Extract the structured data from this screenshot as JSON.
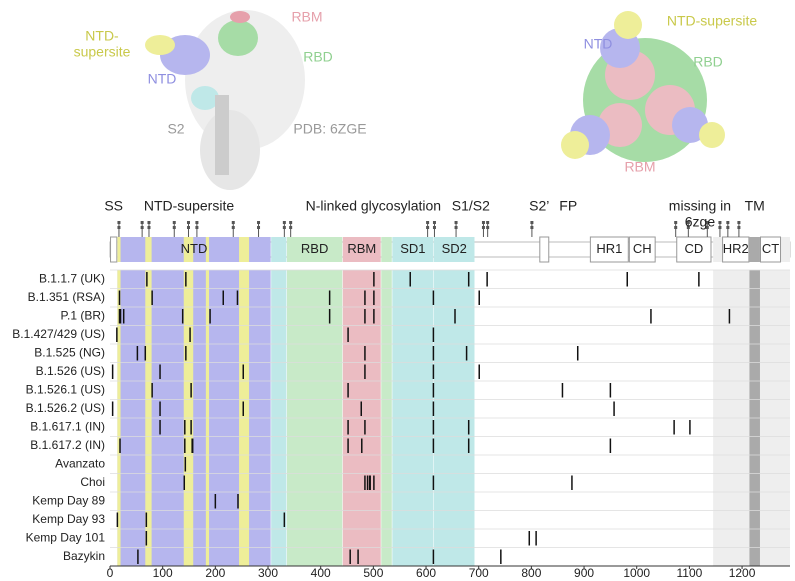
{
  "chart_data": {
    "type": "mutation",
    "xlim": [
      0,
      1291
    ],
    "xticks": [
      0,
      100,
      200,
      300,
      400,
      500,
      600,
      700,
      800,
      900,
      1000,
      1100,
      1200
    ],
    "categories": [
      "B.1.1.7 (UK)",
      "B.1.351 (RSA)",
      "P.1 (BR)",
      "B.1.427/429 (US)",
      "B.1.525 (NG)",
      "B.1.526 (US)",
      "B.1.526.1 (US)",
      "B.1.526.2 (US)",
      "B.1.617.1 (IN)",
      "B.1.617.2 (IN)",
      "Avanzato",
      "Choi",
      "Kemp Day 89",
      "Kemp Day 93",
      "Kemp Day 101",
      "Bazykin"
    ],
    "values": [
      [
        70,
        144,
        501,
        570,
        681,
        716,
        982,
        1118
      ],
      [
        18,
        80,
        215,
        242,
        417,
        484,
        501,
        614,
        701
      ],
      [
        18,
        20,
        26,
        138,
        190,
        417,
        484,
        501,
        655,
        1027,
        1176
      ],
      [
        13,
        152,
        452,
        614
      ],
      [
        52,
        67,
        144,
        484,
        614,
        677,
        888
      ],
      [
        5,
        95,
        253,
        484,
        614,
        701
      ],
      [
        80,
        154,
        452,
        614,
        859,
        950
      ],
      [
        5,
        95,
        253,
        477,
        614,
        957
      ],
      [
        95,
        142,
        154,
        452,
        484,
        614,
        681,
        1071,
        1101
      ],
      [
        19,
        142,
        156,
        157,
        452,
        478,
        614,
        681,
        950
      ],
      [
        143
      ],
      [
        141,
        484,
        489,
        493,
        494,
        501,
        614,
        877
      ],
      [
        200,
        243
      ],
      [
        14,
        69,
        331
      ],
      [
        69,
        796,
        809
      ],
      [
        53,
        456,
        471,
        614,
        742
      ]
    ],
    "mark_color": "#111111",
    "regions": [
      {
        "start": 1,
        "end": 13,
        "color": "#ffffff"
      },
      {
        "start": 14,
        "end": 305,
        "color": "#b6b6ee",
        "label": "NTD"
      },
      {
        "start": 14,
        "end": 20,
        "color": "#eeee99"
      },
      {
        "start": 67,
        "end": 79,
        "color": "#eeee99"
      },
      {
        "start": 140,
        "end": 158,
        "color": "#eeee99"
      },
      {
        "start": 182,
        "end": 188,
        "color": "#eeee99"
      },
      {
        "start": 245,
        "end": 264,
        "color": "#eeee99"
      },
      {
        "start": 306,
        "end": 335,
        "color": "#bfe8e8"
      },
      {
        "start": 336,
        "end": 441,
        "color": "#c8eac8",
        "label": "RBD"
      },
      {
        "start": 442,
        "end": 514,
        "color": "#ebbcc2",
        "label": "RBM"
      },
      {
        "start": 515,
        "end": 535,
        "color": "#c8eac8"
      },
      {
        "start": 536,
        "end": 614,
        "color": "#bfe8e8",
        "label": "SD1"
      },
      {
        "start": 615,
        "end": 692,
        "color": "#bfe8e8",
        "label": "SD2"
      },
      {
        "start": 816,
        "end": 833,
        "color": "#ffffff"
      },
      {
        "start": 912,
        "end": 984,
        "color": "#ffffff",
        "label": "HR1"
      },
      {
        "start": 986,
        "end": 1035,
        "color": "#ffffff",
        "label": "CH"
      },
      {
        "start": 1076,
        "end": 1141,
        "color": "#ffffff",
        "label": "CD"
      },
      {
        "start": 1145,
        "end": 1291,
        "color": "#eeeeee"
      },
      {
        "start": 1163,
        "end": 1213,
        "color": "#ffffff",
        "label": "HR2"
      },
      {
        "start": 1214,
        "end": 1234,
        "color": "#aaaaaa"
      },
      {
        "start": 1235,
        "end": 1273,
        "color": "#ffffff",
        "label": "CT"
      }
    ],
    "annotations": [
      {
        "lines": [
          "SS"
        ],
        "at": 7
      },
      {
        "lines": [
          "NTD-supersite"
        ],
        "at": 150
      },
      {
        "lines": [
          "N-linked glycosylation"
        ],
        "at": 500
      },
      {
        "lines": [
          "S1/S2"
        ],
        "at": 685
      },
      {
        "lines": [
          "S2’"
        ],
        "at": 815
      },
      {
        "lines": [
          "FP"
        ],
        "at": 870
      },
      {
        "lines": [
          "missing in",
          "6zge"
        ],
        "at": 1120
      },
      {
        "lines": [
          "TM"
        ],
        "at": 1224
      }
    ],
    "glycosylation_sites": [
      17,
      61,
      74,
      122,
      149,
      165,
      234,
      282,
      331,
      343,
      603,
      616,
      657,
      709,
      717,
      801,
      1074,
      1098,
      1134,
      1158,
      1173,
      1194
    ],
    "structure_labels": [
      {
        "lines": [
          "NTD-",
          "supersite"
        ],
        "color": "#c9c94a"
      },
      {
        "lines": [
          "NTD"
        ],
        "color": "#8f8fe0"
      },
      {
        "lines": [
          "RBM"
        ],
        "color": "#e6a0ab"
      },
      {
        "lines": [
          "RBD"
        ],
        "color": "#90d090"
      },
      {
        "lines": [
          "S2"
        ],
        "color": "#999999"
      },
      {
        "lines": [
          "PDB: 6ZGE"
        ],
        "color": "#999999"
      },
      {
        "lines": [
          "NTD"
        ],
        "color": "#8f8fe0"
      },
      {
        "lines": [
          "NTD-supersite"
        ],
        "color": "#c9c94a"
      },
      {
        "lines": [
          "RBD"
        ],
        "color": "#90d090"
      },
      {
        "lines": [
          "RBM"
        ],
        "color": "#e6a0ab"
      }
    ]
  }
}
